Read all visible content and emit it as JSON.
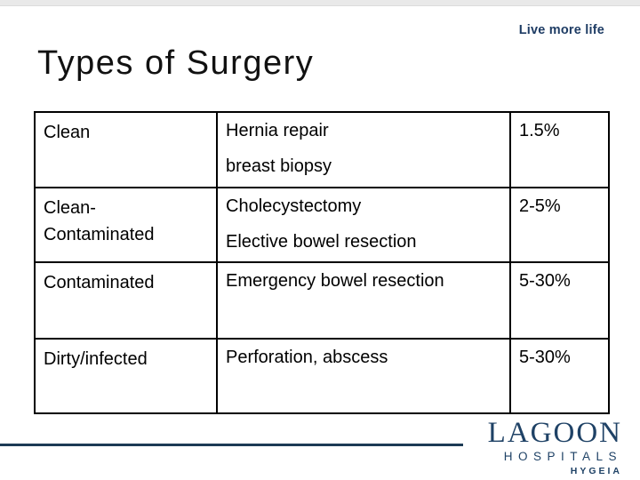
{
  "header": {
    "title": "Types of Surgery",
    "brand_tagline": "Live more life"
  },
  "table": {
    "rows": [
      {
        "category": "Clean",
        "examples": [
          "Hernia repair",
          "breast biopsy"
        ],
        "rate": "1.5%"
      },
      {
        "category": "Clean-Contaminated",
        "examples": [
          "Cholecystectomy",
          "Elective bowel resection"
        ],
        "rate": "2-5%"
      },
      {
        "category": "Contaminated",
        "examples": [
          "Emergency bowel resection"
        ],
        "rate": "5-30%"
      },
      {
        "category": "Dirty/infected",
        "examples": [
          "Perforation, abscess"
        ],
        "rate": "5-30%"
      }
    ]
  },
  "footer": {
    "logo_name": "LAGOON",
    "logo_subtitle": "HOSPITALS",
    "logo_brand": "HYGEIA"
  },
  "colors": {
    "navy_logo": "#1f4266",
    "navy_line": "#1d3b55",
    "navy_tagline": "#1e3c64",
    "table_border": "#000000",
    "top_strip": "#e9e9e9"
  }
}
